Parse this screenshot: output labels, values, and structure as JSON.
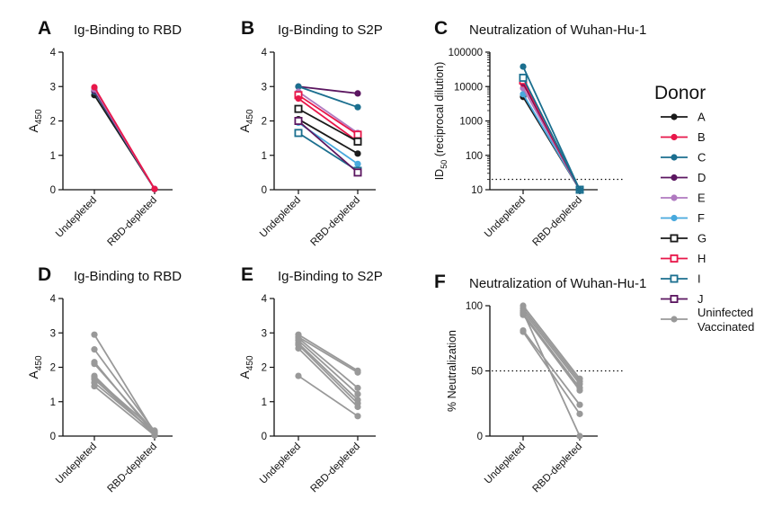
{
  "legend": {
    "title": "Donor",
    "items": [
      {
        "label": "A",
        "color": "#1a1a1a",
        "marker": "circle"
      },
      {
        "label": "B",
        "color": "#e8174a",
        "marker": "circle"
      },
      {
        "label": "C",
        "color": "#1b6f8f",
        "marker": "circle"
      },
      {
        "label": "D",
        "color": "#5b1660",
        "marker": "circle"
      },
      {
        "label": "E",
        "color": "#b07ac0",
        "marker": "circle"
      },
      {
        "label": "F",
        "color": "#48a9dd",
        "marker": "circle"
      },
      {
        "label": "G",
        "color": "#1a1a1a",
        "marker": "open-square"
      },
      {
        "label": "H",
        "color": "#e8174a",
        "marker": "open-square"
      },
      {
        "label": "I",
        "color": "#1b6f8f",
        "marker": "open-square"
      },
      {
        "label": "J",
        "color": "#5b1660",
        "marker": "open-square"
      },
      {
        "label_lines": [
          "Uninfected",
          "Vaccinated"
        ],
        "color": "#999999",
        "marker": "circle"
      }
    ]
  },
  "chart_data": [
    {
      "panel": "A",
      "title": "Ig-Binding to RBD",
      "type": "line",
      "categories": [
        "Undepleted",
        "RBD-depleted"
      ],
      "ylabel": "A450",
      "ylim": [
        0,
        4
      ],
      "yticks": [
        "0",
        "1",
        "2",
        "3",
        "4"
      ],
      "series": [
        {
          "name": "A",
          "values": [
            2.75,
            0.02
          ]
        },
        {
          "name": "C",
          "values": [
            2.85,
            0.02
          ]
        },
        {
          "name": "D",
          "values": [
            2.88,
            0.02
          ]
        },
        {
          "name": "E",
          "values": [
            2.92,
            0.02
          ]
        },
        {
          "name": "B",
          "values": [
            2.98,
            0.02
          ]
        }
      ]
    },
    {
      "panel": "B",
      "title": "Ig-Binding to S2P",
      "type": "line",
      "categories": [
        "Undepleted",
        "RBD-depleted"
      ],
      "ylabel": "A450",
      "ylim": [
        0,
        4
      ],
      "yticks": [
        "0",
        "1",
        "2",
        "3",
        "4"
      ],
      "series": [
        {
          "name": "D",
          "values": [
            3.0,
            2.8
          ]
        },
        {
          "name": "C",
          "values": [
            3.0,
            2.4
          ]
        },
        {
          "name": "E",
          "values": [
            2.85,
            1.65
          ]
        },
        {
          "name": "H",
          "values": [
            2.75,
            1.6
          ]
        },
        {
          "name": "B",
          "values": [
            2.65,
            1.4
          ]
        },
        {
          "name": "G",
          "values": [
            2.35,
            1.4
          ]
        },
        {
          "name": "A",
          "values": [
            2.05,
            1.05
          ]
        },
        {
          "name": "F",
          "values": [
            1.95,
            0.75
          ]
        },
        {
          "name": "I",
          "values": [
            1.65,
            0.55
          ]
        },
        {
          "name": "J",
          "values": [
            2.0,
            0.5
          ]
        }
      ]
    },
    {
      "panel": "C",
      "title": "Neutralization of Wuhan-Hu-1",
      "type": "line",
      "categories": [
        "Undepleted",
        "RBD-depleted"
      ],
      "ylabel": "ID50 (reciprocal dilution)",
      "yscale": "log",
      "ylim": [
        10,
        100000
      ],
      "yticks": [
        "10",
        "100",
        "1000",
        "10000",
        "100000"
      ],
      "reference_line": 20,
      "series": [
        {
          "name": "A",
          "values": [
            5000,
            10
          ]
        },
        {
          "name": "F",
          "values": [
            6000,
            10
          ]
        },
        {
          "name": "E",
          "values": [
            9000,
            10
          ]
        },
        {
          "name": "B",
          "values": [
            12000,
            10
          ]
        },
        {
          "name": "D",
          "values": [
            13000,
            10
          ]
        },
        {
          "name": "H",
          "values": [
            15000,
            10
          ]
        },
        {
          "name": "I",
          "values": [
            18000,
            10
          ]
        },
        {
          "name": "C",
          "values": [
            38000,
            10
          ]
        }
      ]
    },
    {
      "panel": "D",
      "title": "Ig-Binding to RBD",
      "type": "line",
      "categories": [
        "Undepleted",
        "RBD-depleted"
      ],
      "ylabel": "A450",
      "ylim": [
        0,
        4
      ],
      "yticks": [
        "0",
        "1",
        "2",
        "3",
        "4"
      ],
      "series_color": "#999999",
      "lines": [
        [
          2.95,
          0.1
        ],
        [
          2.52,
          0.14
        ],
        [
          2.15,
          0.05
        ],
        [
          2.1,
          0.12
        ],
        [
          1.75,
          0.03
        ],
        [
          1.7,
          0.16
        ],
        [
          1.65,
          0.08
        ],
        [
          1.55,
          0.1
        ],
        [
          1.45,
          0.02
        ]
      ]
    },
    {
      "panel": "E",
      "title": "Ig-Binding to S2P",
      "type": "line",
      "categories": [
        "Undepleted",
        "RBD-depleted"
      ],
      "ylabel": "A450",
      "ylim": [
        0,
        4
      ],
      "yticks": [
        "0",
        "1",
        "2",
        "3",
        "4"
      ],
      "series_color": "#999999",
      "lines": [
        [
          2.95,
          1.9
        ],
        [
          2.88,
          1.85
        ],
        [
          2.85,
          1.4
        ],
        [
          2.78,
          1.22
        ],
        [
          2.7,
          1.05
        ],
        [
          2.65,
          0.95
        ],
        [
          2.55,
          0.85
        ],
        [
          1.75,
          0.58
        ]
      ]
    },
    {
      "panel": "F",
      "title": "Neutralization of Wuhan-Hu-1",
      "type": "line",
      "categories": [
        "Undepleted",
        "RBD-depleted"
      ],
      "ylabel": "% Neutralization",
      "ylim": [
        0,
        100
      ],
      "yticks": [
        "0",
        "50",
        "100"
      ],
      "reference_line": 50,
      "series_color": "#999999",
      "lines": [
        [
          100,
          44
        ],
        [
          98,
          42
        ],
        [
          96,
          40
        ],
        [
          94,
          37
        ],
        [
          93,
          35
        ],
        [
          81,
          24
        ],
        [
          80,
          17
        ],
        [
          95,
          0
        ]
      ]
    }
  ]
}
